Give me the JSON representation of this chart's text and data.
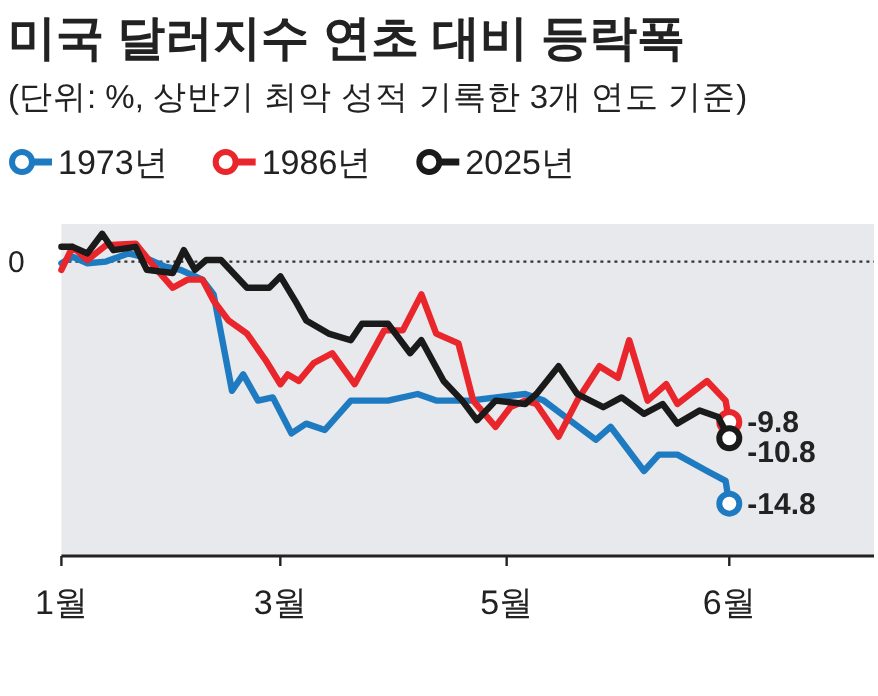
{
  "chart_data": {
    "type": "line",
    "title": "미국 달러지수 연초 대비 등락폭",
    "subtitle": "(단위: %, 상반기 최악 성적 기록한 3개 연도 기준)",
    "ylim": [
      -18,
      2.3
    ],
    "ref_lines": [
      {
        "axis": "y",
        "value": 0,
        "label": "0",
        "line_style": "dotted",
        "color": "#333333"
      }
    ],
    "xlim": [
      "--01-01",
      "--08-08"
    ],
    "xticks": [
      {
        "value": "--01-01",
        "label": "1월"
      },
      {
        "value": "--03-01",
        "label": "3월"
      },
      {
        "value": "--05-01",
        "label": "5월"
      },
      {
        "value": "--06-30",
        "label": "6월"
      }
    ],
    "legend": "top left",
    "series": [
      {
        "name": "1973년",
        "color": "#1f7bc1",
        "x": [
          "--01-01",
          "--01-04",
          "--01-08",
          "--01-13",
          "--01-19",
          "--01-23",
          "--01-29",
          "--02-02",
          "--02-08",
          "--02-11",
          "--02-16",
          "--02-19",
          "--02-23",
          "--02-27",
          "--03-04",
          "--03-08",
          "--03-13",
          "--03-20",
          "--03-30",
          "--04-07",
          "--04-12",
          "--04-21",
          "--05-06",
          "--05-11",
          "--05-18",
          "--05-25",
          "--05-29",
          "--06-07",
          "--06-11",
          "--06-16",
          "--06-24",
          "--06-29",
          "--06-30"
        ],
        "values": [
          -0.1,
          0.3,
          -0.1,
          0,
          0.5,
          0.3,
          -0.3,
          -0.5,
          -1.1,
          -2.0,
          -7.9,
          -6.9,
          -8.5,
          -8.3,
          -10.5,
          -9.9,
          -10.3,
          -8.5,
          -8.5,
          -8.1,
          -8.5,
          -8.5,
          -8.1,
          -8.5,
          -9.7,
          -10.9,
          -10.1,
          -12.8,
          -11.8,
          -11.8,
          -12.8,
          -13.4,
          -14.8
        ],
        "value_labels": [
          null,
          null,
          null,
          null,
          null,
          null,
          null,
          null,
          null,
          null,
          null,
          null,
          null,
          null,
          null,
          null,
          null,
          null,
          null,
          null,
          null,
          null,
          null,
          null,
          null,
          null,
          null,
          null,
          null,
          null,
          null,
          null,
          "-14.8"
        ]
      },
      {
        "name": "1986년",
        "color": "#e8262b",
        "x": [
          "--01-01",
          "--01-04",
          "--01-08",
          "--01-13",
          "--01-21",
          "--01-26",
          "--01-31",
          "--02-04",
          "--02-08",
          "--02-11",
          "--02-15",
          "--02-20",
          "--02-25",
          "--03-01",
          "--03-03",
          "--03-06",
          "--03-10",
          "--03-15",
          "--03-21",
          "--03-29",
          "--04-03",
          "--04-08",
          "--04-12",
          "--04-18",
          "--04-22",
          "--04-28",
          "--05-02",
          "--05-06",
          "--05-09",
          "--05-15",
          "--05-20",
          "--05-26",
          "--05-31",
          "--06-03",
          "--06-08",
          "--06-13",
          "--06-16",
          "--06-24",
          "--06-29",
          "--06-30"
        ],
        "values": [
          -0.5,
          0.9,
          0.1,
          1.0,
          1.1,
          -0.3,
          -1.6,
          -1.1,
          -1.1,
          -2.4,
          -3.6,
          -4.4,
          -6.0,
          -7.5,
          -6.9,
          -7.3,
          -6.2,
          -5.6,
          -7.5,
          -4.2,
          -4.2,
          -2.0,
          -4.4,
          -5.0,
          -8.5,
          -10.1,
          -8.9,
          -8.5,
          -8.7,
          -10.7,
          -8.5,
          -6.4,
          -7.1,
          -4.8,
          -8.5,
          -7.5,
          -8.7,
          -7.3,
          -8.5,
          -9.8
        ],
        "value_labels": [
          null,
          null,
          null,
          null,
          null,
          null,
          null,
          null,
          null,
          null,
          null,
          null,
          null,
          null,
          null,
          null,
          null,
          null,
          null,
          null,
          null,
          null,
          null,
          null,
          null,
          null,
          null,
          null,
          null,
          null,
          null,
          null,
          null,
          null,
          null,
          null,
          null,
          null,
          null,
          "-9.8"
        ]
      },
      {
        "name": "2025년",
        "color": "#1a1a1a",
        "x": [
          "--01-01",
          "--01-04",
          "--01-08",
          "--01-12",
          "--01-15",
          "--01-21",
          "--01-24",
          "--01-31",
          "--02-03",
          "--02-06",
          "--02-09",
          "--02-13",
          "--02-20",
          "--02-26",
          "--03-01",
          "--03-05",
          "--03-08",
          "--03-14",
          "--03-20",
          "--03-23",
          "--03-30",
          "--04-05",
          "--04-08",
          "--04-14",
          "--04-19",
          "--04-23",
          "--04-28",
          "--05-06",
          "--05-09",
          "--05-15",
          "--05-20",
          "--05-27",
          "--06-01",
          "--06-07",
          "--06-12",
          "--06-16",
          "--06-22",
          "--06-27",
          "--06-30"
        ],
        "values": [
          0.9,
          0.9,
          0.5,
          1.7,
          0.7,
          0.9,
          -0.5,
          -0.7,
          0.7,
          -0.5,
          0.1,
          0.1,
          -1.6,
          -1.6,
          -0.9,
          -2.4,
          -3.6,
          -4.4,
          -4.8,
          -3.8,
          -3.8,
          -5.6,
          -4.8,
          -7.3,
          -8.5,
          -9.7,
          -8.5,
          -8.7,
          -8.1,
          -6.4,
          -8.1,
          -8.9,
          -8.3,
          -9.3,
          -8.7,
          -9.9,
          -9.1,
          -9.5,
          -10.8
        ],
        "value_labels": [
          null,
          null,
          null,
          null,
          null,
          null,
          null,
          null,
          null,
          null,
          null,
          null,
          null,
          null,
          null,
          null,
          null,
          null,
          null,
          null,
          null,
          null,
          null,
          null,
          null,
          null,
          null,
          null,
          null,
          null,
          null,
          null,
          null,
          null,
          null,
          null,
          null,
          null,
          "-10.8"
        ]
      }
    ]
  }
}
